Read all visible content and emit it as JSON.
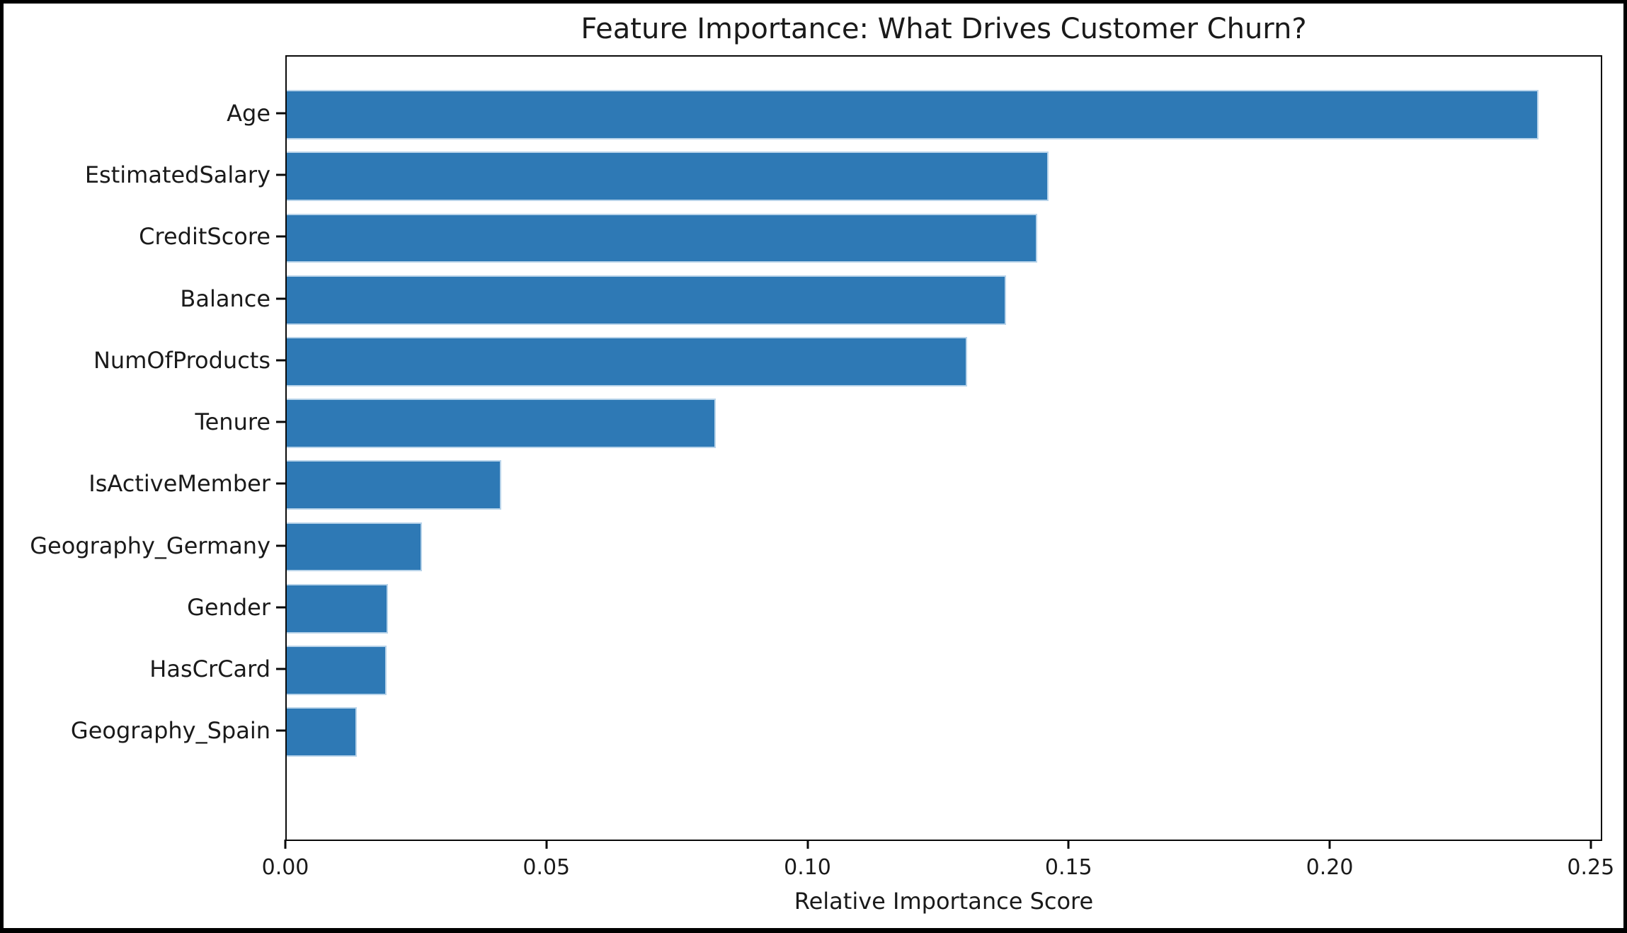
{
  "figure": {
    "background_color": "#ffffff",
    "frame_color": "#000000"
  },
  "chart_data": {
    "type": "bar",
    "orientation": "horizontal",
    "title": "Feature Importance: What Drives Customer Churn?",
    "xlabel": "Relative Importance Score",
    "ylabel": "",
    "categories": [
      "Age",
      "EstimatedSalary",
      "CreditScore",
      "Balance",
      "NumOfProducts",
      "Tenure",
      "IsActiveMember",
      "Geography_Germany",
      "Gender",
      "HasCrCard",
      "Geography_Spain"
    ],
    "values": [
      0.2402,
      0.1462,
      0.144,
      0.1381,
      0.1306,
      0.0824,
      0.0412,
      0.026,
      0.0194,
      0.0191,
      0.0135
    ],
    "x_ticks": [
      0.0,
      0.05,
      0.1,
      0.15,
      0.2,
      0.25
    ],
    "x_tick_labels": [
      "0.00",
      "0.05",
      "0.10",
      "0.15",
      "0.20",
      "0.25"
    ],
    "xlim": [
      0,
      0.2522
    ],
    "bar_fraction_of_slot": 0.8,
    "y_outer_margin_units": 0.94,
    "grid": false,
    "legend": null,
    "bar_color": "#2e79b5",
    "bar_edge_color": "#b9d4ea",
    "axis_color": "#0a0a0a",
    "text_color": "#1a1a1a"
  }
}
